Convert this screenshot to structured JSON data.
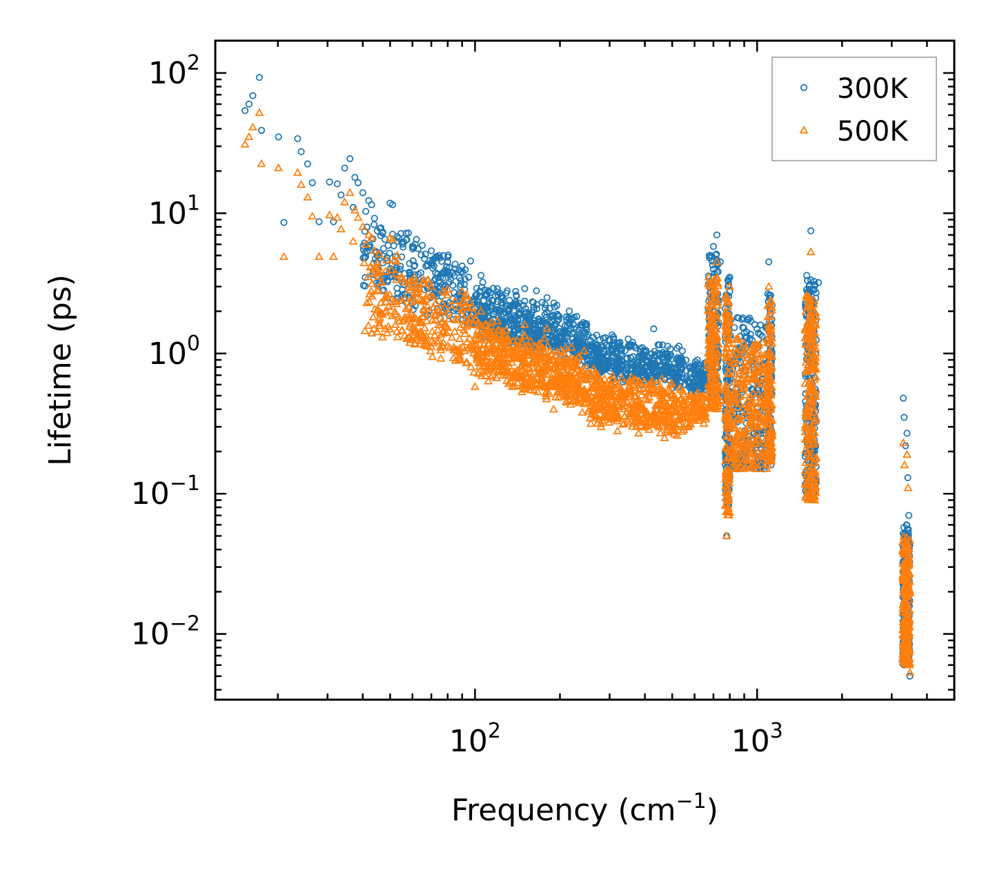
{
  "chart_data": {
    "type": "scatter",
    "title": "",
    "xscale": "log",
    "yscale": "log",
    "xlim": [
      12,
      5000
    ],
    "ylim": [
      0.0034,
      170
    ],
    "xlabel": {
      "text": "Frequency (cm",
      "sup": "−1",
      "suffix": ")"
    },
    "ylabel": "Lifetime (ps)",
    "legend_position": "top-right",
    "x_ticks": [
      {
        "value": 100,
        "base": "10",
        "exp": "2"
      },
      {
        "value": 1000,
        "base": "10",
        "exp": "3"
      }
    ],
    "y_ticks": [
      {
        "value": 100,
        "base": "10",
        "exp": "2"
      },
      {
        "value": 10,
        "base": "10",
        "exp": "1"
      },
      {
        "value": 1,
        "base": "10",
        "exp": "0"
      },
      {
        "value": 0.1,
        "base": "10",
        "exp": "−1"
      },
      {
        "value": 0.01,
        "base": "10",
        "exp": "−2"
      }
    ],
    "series": [
      {
        "name": "300K",
        "color": "#1f77b4",
        "marker": "circle",
        "points": [
          [
            15.3,
            54
          ],
          [
            15.8,
            60
          ],
          [
            16.3,
            69
          ],
          [
            17.2,
            93
          ],
          [
            17.5,
            39
          ],
          [
            20.1,
            35
          ],
          [
            21,
            8.6
          ],
          [
            23.5,
            34
          ],
          [
            24.2,
            27.5
          ],
          [
            25.5,
            22.5
          ],
          [
            26.5,
            16.5
          ],
          [
            28,
            8.7
          ],
          [
            30.5,
            16.7
          ],
          [
            31.5,
            8.7
          ],
          [
            32.5,
            16.2
          ],
          [
            33.5,
            13.5
          ],
          [
            34.5,
            21
          ],
          [
            36,
            24.5
          ],
          [
            37,
            11
          ],
          [
            37.5,
            18
          ],
          [
            38.5,
            16.5
          ],
          [
            40,
            14
          ],
          [
            41,
            10.3
          ],
          [
            42,
            12.3
          ],
          [
            43,
            11.5
          ],
          [
            44,
            9.2
          ],
          [
            45,
            7.5
          ],
          [
            46,
            7.8
          ],
          [
            47,
            7.2
          ],
          [
            48,
            6.5
          ],
          [
            50,
            11.8
          ],
          [
            51,
            11.5
          ],
          [
            53,
            6.8
          ],
          [
            55,
            6.2
          ],
          [
            57,
            7.2
          ],
          [
            60,
            5.8
          ],
          [
            62,
            6.5
          ],
          [
            65,
            5.9
          ],
          [
            70,
            5.4
          ],
          [
            75,
            4.8
          ],
          [
            80,
            4.5
          ],
          [
            85,
            4.0
          ],
          [
            90,
            4.2
          ],
          [
            95,
            3.5
          ],
          [
            105,
            3.6
          ],
          [
            112,
            2.8
          ],
          [
            120,
            2.9
          ],
          [
            130,
            2.8
          ],
          [
            140,
            2.6
          ],
          [
            150,
            2.9
          ],
          [
            165,
            2.8
          ],
          [
            180,
            2.5
          ],
          [
            195,
            2.2
          ],
          [
            215,
            1.8
          ],
          [
            240,
            1.6
          ],
          [
            270,
            1.35
          ],
          [
            300,
            1.25
          ],
          [
            340,
            1.05
          ],
          [
            380,
            0.95
          ],
          [
            430,
            1.5
          ],
          [
            480,
            0.95
          ],
          [
            530,
            0.9
          ],
          [
            600,
            0.82
          ],
          [
            650,
            0.85
          ],
          [
            680,
            5.0
          ],
          [
            700,
            5.8
          ],
          [
            720,
            7.0
          ],
          [
            740,
            4.5
          ],
          [
            780,
            0.05
          ],
          [
            800,
            3.5
          ],
          [
            850,
            1.8
          ],
          [
            900,
            1.4
          ],
          [
            950,
            1.7
          ],
          [
            1000,
            1.5
          ],
          [
            1050,
            1.2
          ],
          [
            1100,
            4.5
          ],
          [
            1120,
            0.16
          ],
          [
            1500,
            3.6
          ],
          [
            1550,
            7.5
          ],
          [
            1560,
            2.4
          ],
          [
            1600,
            0.2
          ],
          [
            1650,
            3.2
          ],
          [
            3300,
            0.48
          ],
          [
            3320,
            0.35
          ],
          [
            3360,
            0.22
          ],
          [
            3400,
            0.27
          ],
          [
            3420,
            0.13
          ],
          [
            3450,
            0.07
          ],
          [
            3480,
            0.005
          ]
        ],
        "bands": [
          {
            "x": [
              40,
              100
            ],
            "y_lo_start": 3.0,
            "y_lo_end": 1.7,
            "y_hi_start": 9.0,
            "y_hi_end": 4.0,
            "n": 260,
            "jitter": 0.15
          },
          {
            "x": [
              100,
              250
            ],
            "y_lo_start": 1.5,
            "y_lo_end": 0.9,
            "y_hi_start": 3.0,
            "y_hi_end": 1.7,
            "n": 520,
            "jitter": 0.12
          },
          {
            "x": [
              250,
              560
            ],
            "y_lo_start": 0.75,
            "y_lo_end": 0.6,
            "y_hi_start": 1.3,
            "y_hi_end": 1.05,
            "n": 420,
            "jitter": 0.1
          },
          {
            "x": [
              560,
              660
            ],
            "y_lo_start": 0.55,
            "y_lo_end": 0.55,
            "y_hi_start": 0.85,
            "y_hi_end": 0.85,
            "n": 80,
            "jitter": 0.08
          },
          {
            "x": [
              670,
              730
            ],
            "y_lo_start": 0.5,
            "y_lo_end": 0.5,
            "y_hi_start": 5.5,
            "y_hi_end": 5.5,
            "n": 160,
            "jitter": 0.0
          },
          {
            "x": [
              770,
              800
            ],
            "y_lo_start": 0.08,
            "y_lo_end": 0.08,
            "y_hi_start": 3.5,
            "y_hi_end": 3.5,
            "n": 140,
            "jitter": 0.0
          },
          {
            "x": [
              800,
              1100
            ],
            "y_lo_start": 0.15,
            "y_lo_end": 0.15,
            "y_hi_start": 1.8,
            "y_hi_end": 1.8,
            "n": 260,
            "jitter": 0.0
          },
          {
            "x": [
              1090,
              1130
            ],
            "y_lo_start": 0.17,
            "y_lo_end": 0.17,
            "y_hi_start": 3.2,
            "y_hi_end": 3.2,
            "n": 120,
            "jitter": 0.0
          },
          {
            "x": [
              1480,
              1620
            ],
            "y_lo_start": 0.1,
            "y_lo_end": 0.1,
            "y_hi_start": 3.4,
            "y_hi_end": 3.4,
            "n": 220,
            "jitter": 0.0
          },
          {
            "x": [
              3280,
              3480
            ],
            "y_lo_start": 0.006,
            "y_lo_end": 0.006,
            "y_hi_start": 0.06,
            "y_hi_end": 0.06,
            "n": 240,
            "jitter": 0.0
          }
        ]
      },
      {
        "name": "500K",
        "color": "#ff7f0e",
        "marker": "triangle",
        "points": [
          [
            15.3,
            31
          ],
          [
            15.8,
            35
          ],
          [
            16.3,
            41
          ],
          [
            17.2,
            52
          ],
          [
            17.5,
            22.5
          ],
          [
            20.1,
            21
          ],
          [
            21,
            4.9
          ],
          [
            23.5,
            19.5
          ],
          [
            24.2,
            16
          ],
          [
            25.5,
            13
          ],
          [
            26.5,
            9.5
          ],
          [
            28,
            4.9
          ],
          [
            30.5,
            9.7
          ],
          [
            31.5,
            4.9
          ],
          [
            32.5,
            9.3
          ],
          [
            33.5,
            7.7
          ],
          [
            34.5,
            12
          ],
          [
            36,
            14
          ],
          [
            37,
            6.3
          ],
          [
            37.5,
            10.5
          ],
          [
            38.5,
            9.3
          ],
          [
            40,
            8.0
          ],
          [
            41,
            6.0
          ],
          [
            42,
            7.0
          ],
          [
            43,
            6.7
          ],
          [
            44,
            5.4
          ],
          [
            45,
            4.4
          ],
          [
            46,
            1.8
          ],
          [
            47,
            1.9
          ],
          [
            50,
            6.7
          ],
          [
            51,
            6.5
          ],
          [
            53,
            5.0
          ],
          [
            55,
            3.5
          ],
          [
            60,
            3.3
          ],
          [
            65,
            1.3
          ],
          [
            70,
            3.0
          ],
          [
            80,
            2.6
          ],
          [
            90,
            2.3
          ],
          [
            100,
            0.58
          ],
          [
            105,
            2.0
          ],
          [
            120,
            1.7
          ],
          [
            150,
            1.6
          ],
          [
            170,
            0.6
          ],
          [
            180,
            1.5
          ],
          [
            190,
            0.4
          ],
          [
            210,
            0.45
          ],
          [
            240,
            0.38
          ],
          [
            280,
            0.3
          ],
          [
            320,
            0.28
          ],
          [
            380,
            0.27
          ],
          [
            420,
            0.32
          ],
          [
            470,
            0.25
          ],
          [
            520,
            0.26
          ],
          [
            600,
            0.34
          ],
          [
            680,
            3.0
          ],
          [
            720,
            4.5
          ],
          [
            780,
            0.05
          ],
          [
            800,
            3.0
          ],
          [
            900,
            0.6
          ],
          [
            1000,
            1.0
          ],
          [
            1100,
            3.0
          ],
          [
            1120,
            0.17
          ],
          [
            1500,
            2.5
          ],
          [
            1550,
            5.3
          ],
          [
            1600,
            0.09
          ],
          [
            3300,
            0.23
          ],
          [
            3330,
            0.16
          ],
          [
            3400,
            0.19
          ],
          [
            3430,
            0.11
          ],
          [
            3480,
            0.0053
          ]
        ],
        "bands": [
          {
            "x": [
              40,
              100
            ],
            "y_lo_start": 1.6,
            "y_lo_end": 0.85,
            "y_hi_start": 5.0,
            "y_hi_end": 2.3,
            "n": 260,
            "jitter": 0.15
          },
          {
            "x": [
              100,
              250
            ],
            "y_lo_start": 0.75,
            "y_lo_end": 0.45,
            "y_hi_start": 1.7,
            "y_hi_end": 0.9,
            "n": 520,
            "jitter": 0.12
          },
          {
            "x": [
              250,
              560
            ],
            "y_lo_start": 0.35,
            "y_lo_end": 0.28,
            "y_hi_start": 0.75,
            "y_hi_end": 0.55,
            "n": 420,
            "jitter": 0.1
          },
          {
            "x": [
              560,
              660
            ],
            "y_lo_start": 0.32,
            "y_lo_end": 0.34,
            "y_hi_start": 0.5,
            "y_hi_end": 0.5,
            "n": 80,
            "jitter": 0.08
          },
          {
            "x": [
              670,
              730
            ],
            "y_lo_start": 0.4,
            "y_lo_end": 0.4,
            "y_hi_start": 3.5,
            "y_hi_end": 3.5,
            "n": 160,
            "jitter": 0.0
          },
          {
            "x": [
              770,
              800
            ],
            "y_lo_start": 0.07,
            "y_lo_end": 0.07,
            "y_hi_start": 2.6,
            "y_hi_end": 2.6,
            "n": 140,
            "jitter": 0.0
          },
          {
            "x": [
              800,
              1100
            ],
            "y_lo_start": 0.15,
            "y_lo_end": 0.15,
            "y_hi_start": 1.3,
            "y_hi_end": 1.3,
            "n": 260,
            "jitter": 0.0
          },
          {
            "x": [
              1090,
              1130
            ],
            "y_lo_start": 0.17,
            "y_lo_end": 0.17,
            "y_hi_start": 2.5,
            "y_hi_end": 2.5,
            "n": 120,
            "jitter": 0.0
          },
          {
            "x": [
              1480,
              1620
            ],
            "y_lo_start": 0.09,
            "y_lo_end": 0.09,
            "y_hi_start": 2.6,
            "y_hi_end": 2.6,
            "n": 220,
            "jitter": 0.0
          },
          {
            "x": [
              3280,
              3480
            ],
            "y_lo_start": 0.006,
            "y_lo_end": 0.006,
            "y_hi_start": 0.05,
            "y_hi_end": 0.05,
            "n": 240,
            "jitter": 0.0
          }
        ]
      }
    ]
  }
}
